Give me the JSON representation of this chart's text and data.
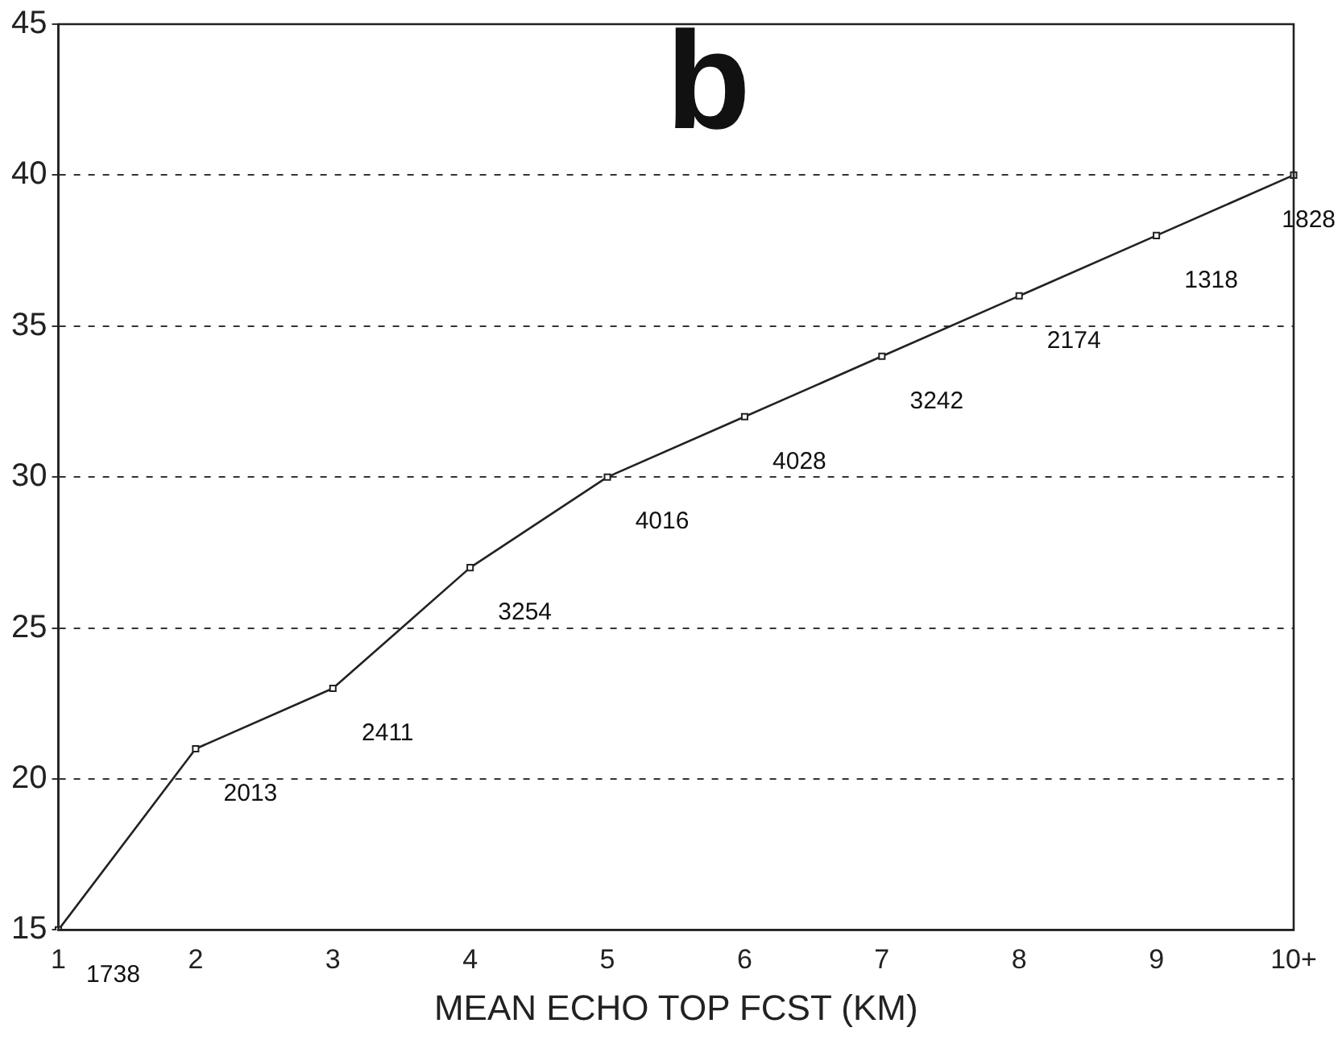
{
  "chart_data": {
    "type": "line",
    "title": "b",
    "xlabel": "MEAN ECHO TOP FCST (KM)",
    "categories": [
      "1",
      "2",
      "3",
      "4",
      "5",
      "6",
      "7",
      "8",
      "9",
      "10+"
    ],
    "values": [
      15,
      21,
      23,
      27,
      30,
      32,
      34,
      36,
      38,
      40
    ],
    "color": "#222222",
    "marker": "square",
    "line_style": "solid",
    "ylim": [
      15,
      45
    ],
    "yticks": [
      15,
      20,
      25,
      30,
      35,
      40,
      45
    ],
    "grid": "y",
    "legend": false,
    "annotations": [
      {
        "text": "1738",
        "x": "1",
        "y": 15
      },
      {
        "text": "2013",
        "x": "2",
        "y": 21
      },
      {
        "text": "2411",
        "x": "3",
        "y": 23
      },
      {
        "text": "3254",
        "x": "4",
        "y": 27
      },
      {
        "text": "4016",
        "x": "5",
        "y": 30
      },
      {
        "text": "4028",
        "x": "6",
        "y": 32
      },
      {
        "text": "3242",
        "x": "7",
        "y": 34
      },
      {
        "text": "2174",
        "x": "8",
        "y": 36
      },
      {
        "text": "1318",
        "x": "9",
        "y": 38
      },
      {
        "text": "1828",
        "x": "10+",
        "y": 40
      }
    ]
  }
}
